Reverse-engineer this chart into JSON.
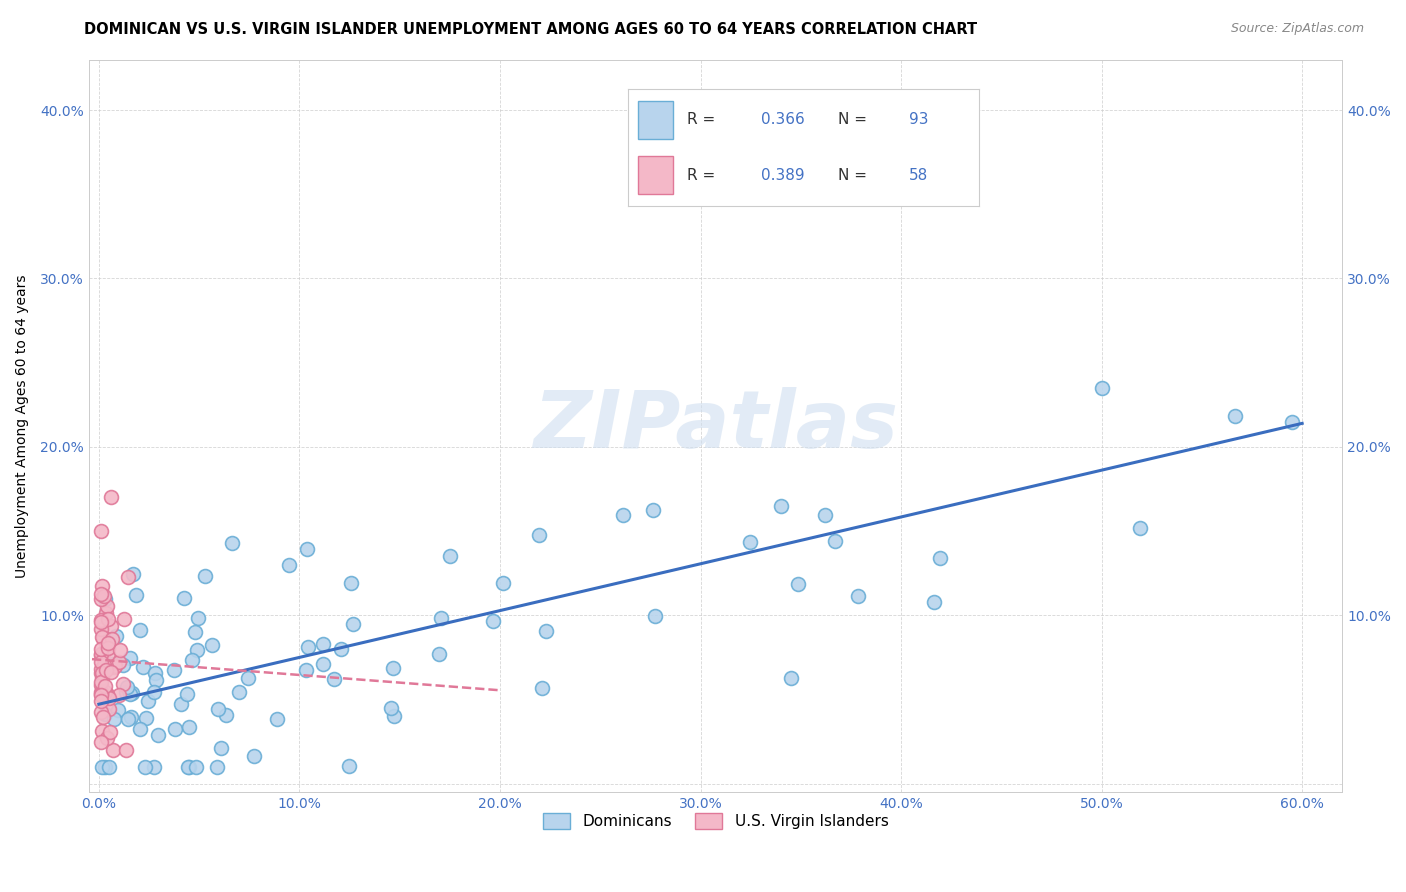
{
  "title": "DOMINICAN VS U.S. VIRGIN ISLANDER UNEMPLOYMENT AMONG AGES 60 TO 64 YEARS CORRELATION CHART",
  "source": "Source: ZipAtlas.com",
  "ylabel": "Unemployment Among Ages 60 to 64 years",
  "xlim": [
    -0.005,
    0.62
  ],
  "ylim": [
    -0.005,
    0.43
  ],
  "xticks": [
    0.0,
    0.1,
    0.2,
    0.3,
    0.4,
    0.5,
    0.6
  ],
  "yticks": [
    0.0,
    0.1,
    0.2,
    0.3,
    0.4
  ],
  "xticklabels": [
    "0.0%",
    "10.0%",
    "20.0%",
    "30.0%",
    "40.0%",
    "50.0%",
    "60.0%"
  ],
  "yticklabels": [
    "",
    "10.0%",
    "20.0%",
    "30.0%",
    "40.0%"
  ],
  "dominicans_fill": "#b8d4ed",
  "dominicans_edge": "#6aaed6",
  "vi_fill": "#f4b8c8",
  "vi_edge": "#e07898",
  "trend_dom_color": "#3a6dbf",
  "trend_vi_color": "#e07898",
  "R_dom": 0.366,
  "N_dom": 93,
  "R_vi": 0.389,
  "N_vi": 58,
  "watermark": "ZIPatlas",
  "watermark_color": "#d0dff0",
  "label_dom": "Dominicans",
  "label_vi": "U.S. Virgin Islanders",
  "tick_color": "#4472c4",
  "title_fontsize": 10.5,
  "source_fontsize": 9,
  "tick_fontsize": 10,
  "ylabel_fontsize": 10
}
